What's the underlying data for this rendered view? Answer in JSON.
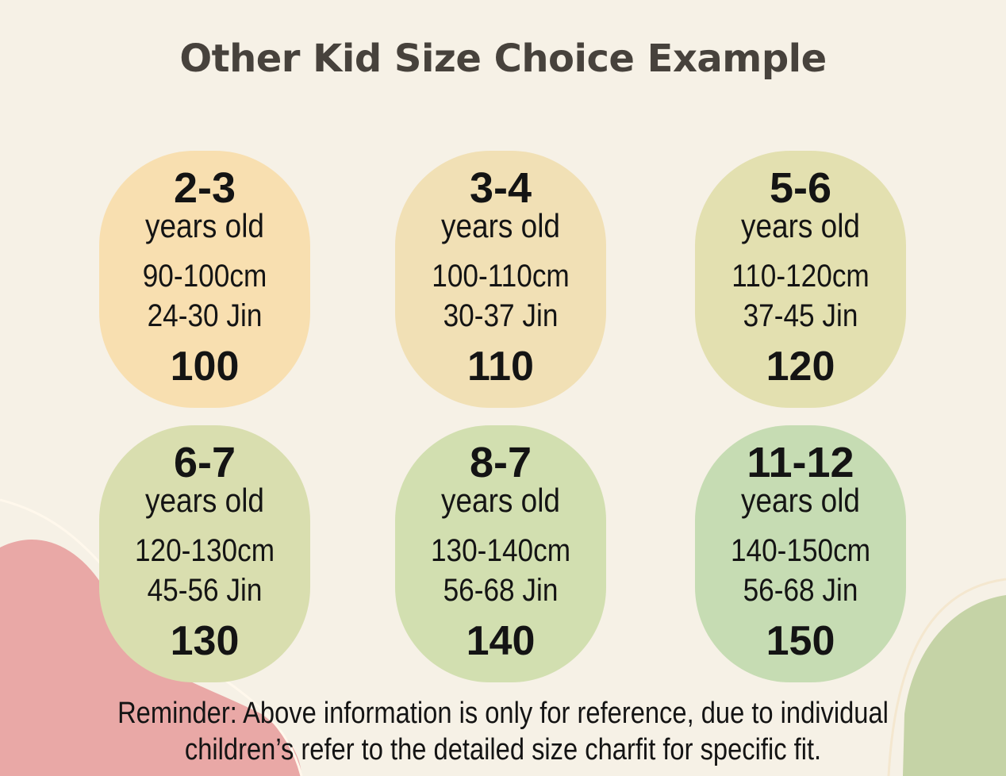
{
  "header": {
    "title": "Other Kid Size Choice Example"
  },
  "cards": [
    {
      "age": "2-3",
      "unit": "years old",
      "height": "90-100cm",
      "weight": "24-30 Jin",
      "size": "100",
      "color": "#f8dfb0"
    },
    {
      "age": "3-4",
      "unit": "years old",
      "height": "100-110cm",
      "weight": "30-37 Jin",
      "size": "110",
      "color": "#f1e0b5"
    },
    {
      "age": "5-6",
      "unit": "years old",
      "height": "110-120cm",
      "weight": "37-45 Jin",
      "size": "120",
      "color": "#e3e0b0"
    },
    {
      "age": "6-7",
      "unit": "years old",
      "height": "120-130cm",
      "weight": "45-56 Jin",
      "size": "130",
      "color": "#d9deaf"
    },
    {
      "age": "8-7",
      "unit": "years old",
      "height": "130-140cm",
      "weight": "56-68 Jin",
      "size": "140",
      "color": "#d2dfb0"
    },
    {
      "age": "11-12",
      "unit": "years old",
      "height": "140-150cm",
      "weight": "56-68 Jin",
      "size": "150",
      "color": "#c6dcb3"
    }
  ],
  "reminder": {
    "lines": [
      "Reminder: Above information is only for reference, due to individual",
      "children’s refer to the detailed size charfit for specific fit."
    ]
  }
}
